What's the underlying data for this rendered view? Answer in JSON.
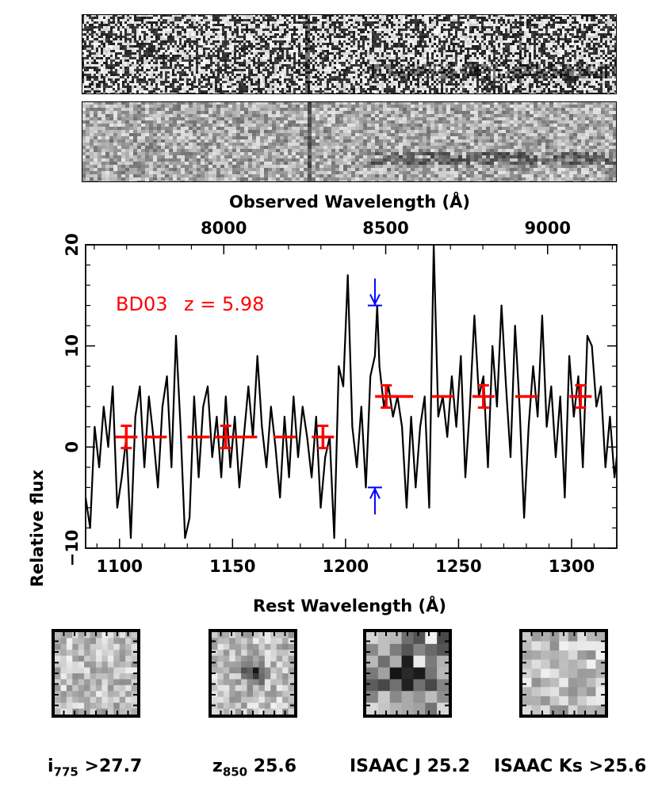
{
  "spectra_panels": [
    "2d-spectrum-raw",
    "2d-spectrum-smoothed"
  ],
  "chart_data": {
    "type": "line",
    "object_label": "BD03",
    "redshift_label": "z = 5.98",
    "xlabel_top": "Observed Wavelength (Å)",
    "xlabel_bottom": "Rest Wavelength (Å)",
    "ylabel": "Relative flux",
    "xlim_rest": [
      1085,
      1320
    ],
    "ylim": [
      -10,
      20
    ],
    "top_ticks": [
      {
        "value": 8000,
        "label": "8000"
      },
      {
        "value": 8500,
        "label": "8500"
      },
      {
        "value": 9000,
        "label": "9000"
      }
    ],
    "bottom_ticks": [
      {
        "value": 1100,
        "label": "1100"
      },
      {
        "value": 1150,
        "label": "1150"
      },
      {
        "value": 1200,
        "label": "1200"
      },
      {
        "value": 1250,
        "label": "1250"
      },
      {
        "value": 1300,
        "label": "1300"
      }
    ],
    "y_ticks": [
      {
        "value": -10,
        "label": "−10"
      },
      {
        "value": 0,
        "label": "0"
      },
      {
        "value": 10,
        "label": "10"
      },
      {
        "value": 20,
        "label": "20"
      }
    ],
    "spectrum": {
      "x": [
        1085,
        1087,
        1089,
        1091,
        1093,
        1095,
        1097,
        1099,
        1101,
        1103,
        1105,
        1107,
        1109,
        1111,
        1113,
        1115,
        1117,
        1119,
        1121,
        1123,
        1125,
        1127,
        1129,
        1131,
        1133,
        1135,
        1137,
        1139,
        1141,
        1143,
        1145,
        1147,
        1149,
        1151,
        1153,
        1155,
        1157,
        1159,
        1161,
        1163,
        1165,
        1167,
        1169,
        1171,
        1173,
        1175,
        1177,
        1179,
        1181,
        1183,
        1185,
        1187,
        1189,
        1191,
        1193,
        1195,
        1197,
        1199,
        1201,
        1203,
        1205,
        1207,
        1209,
        1211,
        1213,
        1214,
        1215,
        1217,
        1219,
        1221,
        1223,
        1225,
        1227,
        1229,
        1231,
        1233,
        1235,
        1237,
        1239,
        1241,
        1243,
        1245,
        1247,
        1249,
        1251,
        1253,
        1255,
        1257,
        1259,
        1261,
        1263,
        1265,
        1267,
        1269,
        1271,
        1273,
        1275,
        1277,
        1279,
        1281,
        1283,
        1285,
        1287,
        1289,
        1291,
        1293,
        1295,
        1297,
        1299,
        1301,
        1303,
        1305,
        1307,
        1309,
        1311,
        1313,
        1315,
        1317,
        1319,
        1320
      ],
      "y": [
        -5,
        -8,
        2,
        -2,
        4,
        0,
        6,
        -6,
        -3,
        1,
        -9,
        3,
        6,
        -2,
        5,
        1,
        -4,
        4,
        7,
        -2,
        11,
        2,
        -9,
        -7,
        5,
        -3,
        4,
        6,
        -1,
        3,
        -3,
        5,
        -2,
        3,
        -4,
        1,
        6,
        1,
        9,
        2,
        -2,
        4,
        0,
        -5,
        3,
        -3,
        5,
        -1,
        4,
        1,
        -3,
        3,
        -6,
        -1,
        1,
        -9,
        8,
        6,
        17,
        2,
        -2,
        4,
        -4,
        7,
        9,
        14,
        8,
        4,
        6,
        3,
        5,
        2,
        -6,
        3,
        -4,
        2,
        5,
        -6,
        20,
        3,
        5,
        1,
        7,
        2,
        9,
        -3,
        4,
        13,
        5,
        7,
        -2,
        10,
        4,
        14,
        6,
        -1,
        12,
        4,
        -7,
        2,
        8,
        3,
        13,
        2,
        6,
        -1,
        5,
        -5,
        9,
        3,
        7,
        -2,
        11,
        10,
        4,
        6,
        -2,
        3,
        -3,
        -1
      ],
      "linewidth": "2.2"
    },
    "binned_points": [
      {
        "x": 1103,
        "y": 1,
        "err": 1.1
      },
      {
        "x": 1116,
        "y": 1,
        "err": 0
      },
      {
        "x": 1135,
        "y": 1,
        "err": 0
      },
      {
        "x": 1147,
        "y": 1,
        "err": 1.1
      },
      {
        "x": 1156,
        "y": 1,
        "err": 0
      },
      {
        "x": 1173,
        "y": 1,
        "err": 0
      },
      {
        "x": 1190,
        "y": 1,
        "err": 1.1
      },
      {
        "x": 1218,
        "y": 5,
        "err": 1.1
      },
      {
        "x": 1225,
        "y": 5,
        "err": 0
      },
      {
        "x": 1243,
        "y": 5,
        "err": 0
      },
      {
        "x": 1261,
        "y": 5,
        "err": 1.1
      },
      {
        "x": 1280,
        "y": 5,
        "err": 0
      },
      {
        "x": 1304,
        "y": 5,
        "err": 1.1
      }
    ],
    "lya_markers": {
      "x": 1213,
      "y_upper": 14,
      "y_lower": -4
    },
    "colors": {
      "spectrum": "#000000",
      "binned": "#ff0000",
      "marker": "#0000ff"
    }
  },
  "stamps": [
    {
      "id": "i775",
      "band": "i",
      "sub": "775",
      "value": ">27.7",
      "kind": "faint"
    },
    {
      "id": "z850",
      "band": "z",
      "sub": "850",
      "value": "25.6",
      "kind": "center"
    },
    {
      "id": "isaac-j",
      "band": "ISAAC J",
      "sub": "",
      "value": "25.2",
      "kind": "blocky"
    },
    {
      "id": "isaac-ks",
      "band": "ISAAC Ks",
      "sub": "",
      "value": ">25.6",
      "kind": "smooth"
    }
  ]
}
